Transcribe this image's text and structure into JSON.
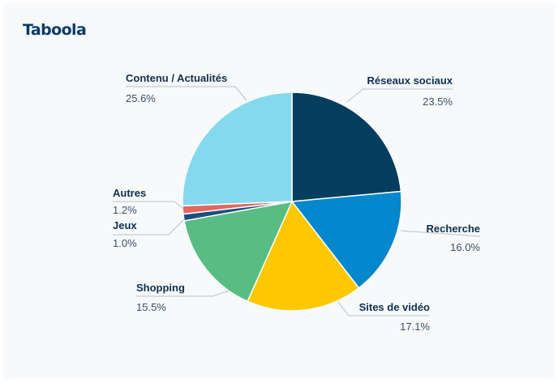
{
  "brand": {
    "logo_text": "Taboola"
  },
  "chart_data": {
    "type": "pie",
    "title": "",
    "slices": [
      {
        "label": "Réseaux sociaux",
        "value": 23.5,
        "display": "23.5%",
        "color": "#033d5f"
      },
      {
        "label": "Recherche",
        "value": 16.0,
        "display": "16.0%",
        "color": "#0487cc"
      },
      {
        "label": "Sites de vidéo",
        "value": 17.1,
        "display": "17.1%",
        "color": "#fdc800"
      },
      {
        "label": "Shopping",
        "value": 15.5,
        "display": "15.5%",
        "color": "#58bd82"
      },
      {
        "label": "Jeux",
        "value": 1.0,
        "display": "1.0%",
        "color": "#1a4f80"
      },
      {
        "label": "Autres",
        "value": 1.2,
        "display": "1.2%",
        "color": "#e2675f"
      },
      {
        "label": "Contenu / Actualités",
        "value": 25.6,
        "display": "25.6%",
        "color": "#85d9ef"
      }
    ],
    "start_angle_deg": 0,
    "direction": "clockwise",
    "legend": "none",
    "labels": "outside-with-leader-lines"
  }
}
